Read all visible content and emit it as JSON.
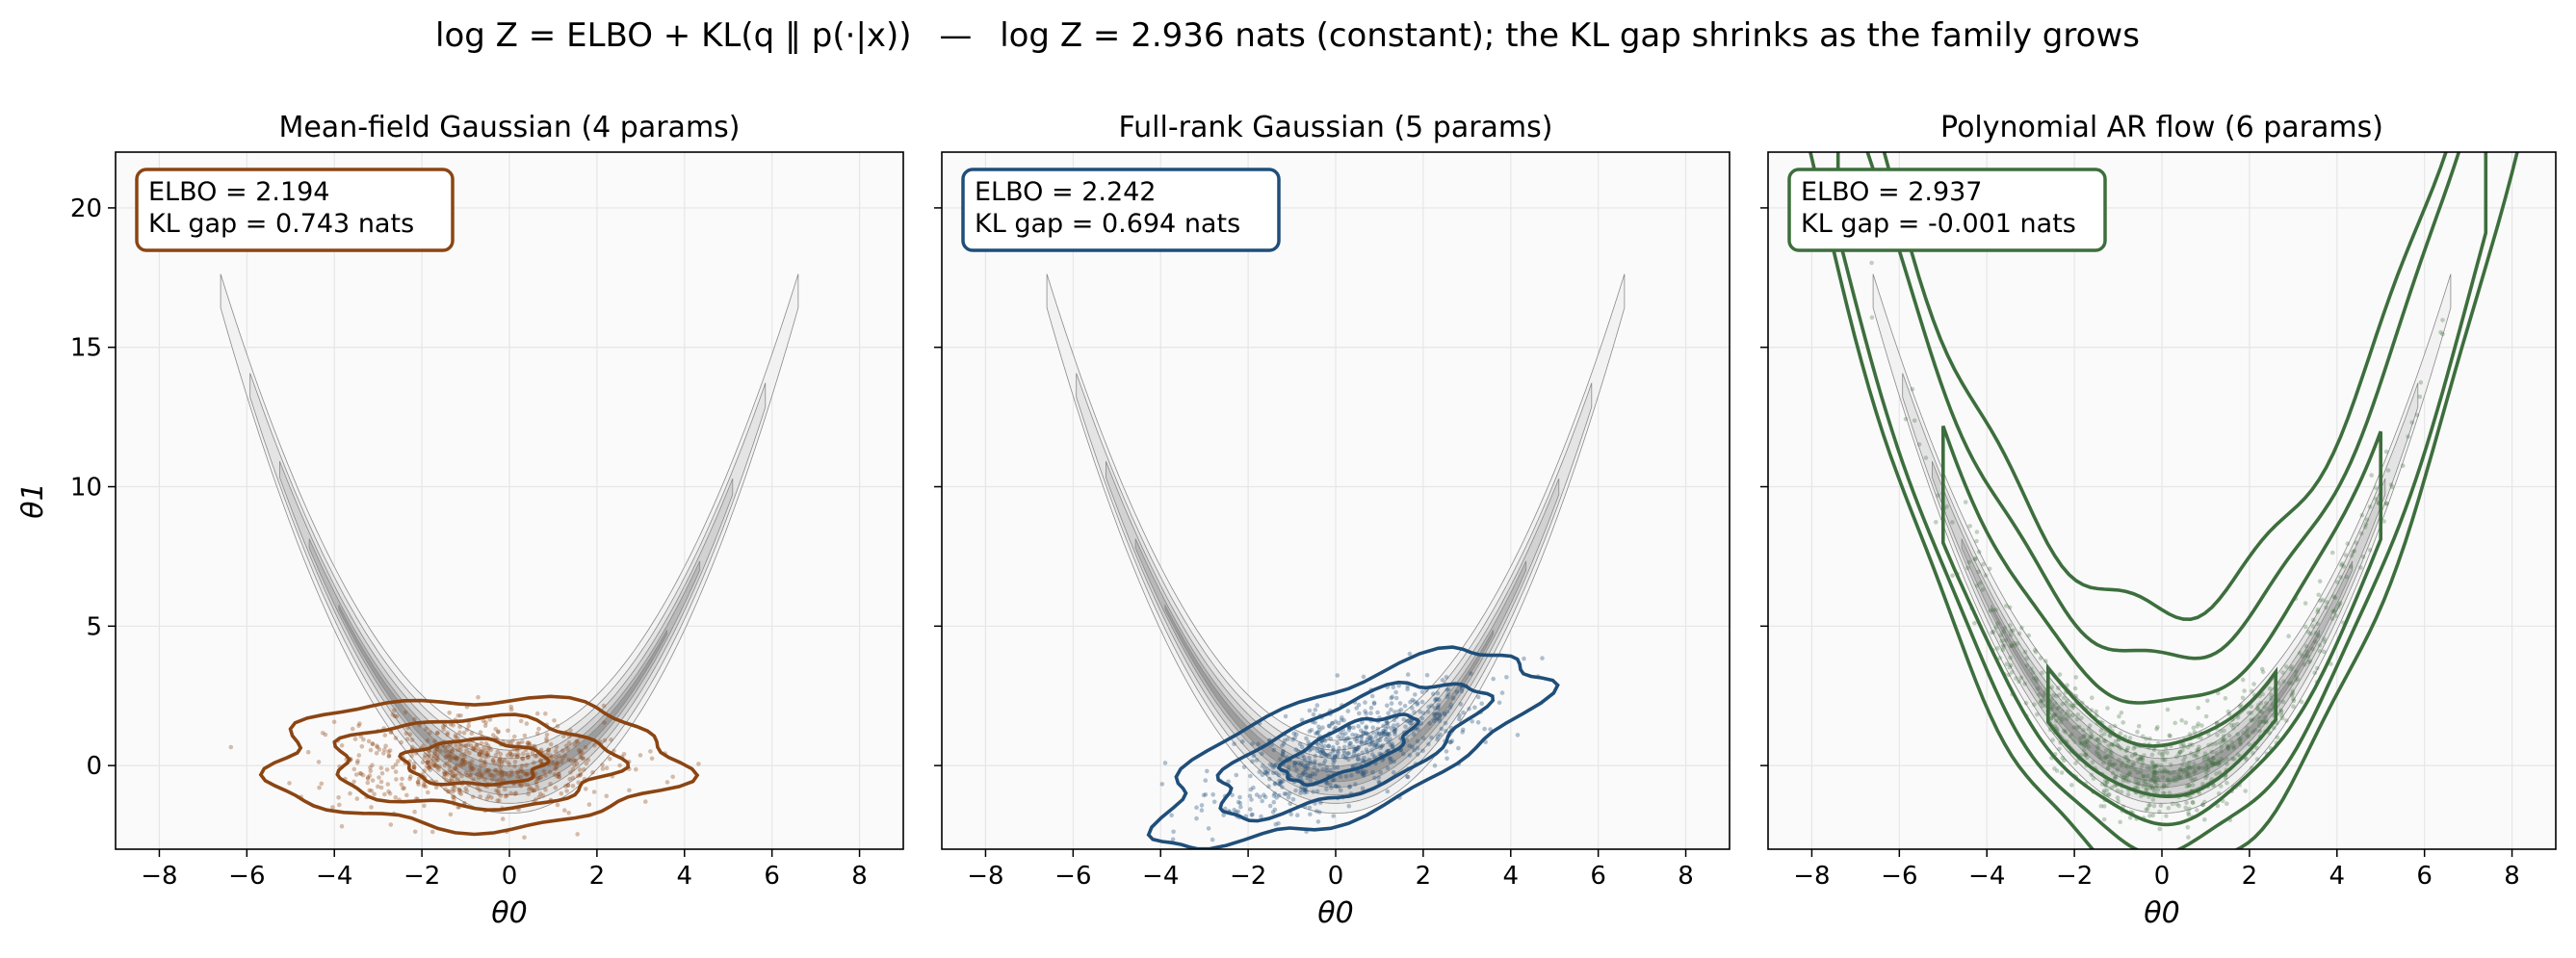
{
  "figure": {
    "title_parts": {
      "formula": "log Z = ELBO + KL(q ‖ p(·|x))",
      "separator": "—",
      "text": "log Z = 2.936 nats (constant); the KL gap shrinks as the family grows"
    }
  },
  "chart_data": [
    {
      "type": "scatter",
      "title": "Mean-field Gaussian (4 params)",
      "xlabel": "θ0",
      "ylabel": "θ1",
      "xlim": [
        -9,
        9
      ],
      "ylim": [
        -3,
        22
      ],
      "xticks": [
        -8,
        -6,
        -4,
        -2,
        0,
        2,
        4,
        6,
        8
      ],
      "yticks": [
        0,
        5,
        10,
        15,
        20
      ],
      "grid": true,
      "target_density": "banana (theta1 ≈ 0.4·theta0^2 − 0.4, grey filled contours)",
      "annotation_lines": [
        "ELBO = 2.194",
        "KL gap = 0.743 nats"
      ],
      "annotation_placement": "top-left",
      "elbo": 2.194,
      "kl_gap": 0.743,
      "color": "#8b4513",
      "approx": {
        "mean": [
          -0.8,
          0.1
        ],
        "sd": [
          1.6,
          0.8
        ],
        "corr": 0.0
      },
      "contour_levels_sd": [
        1.0,
        2.0,
        2.9
      ]
    },
    {
      "type": "scatter",
      "title": "Full-rank Gaussian (5 params)",
      "xlabel": "θ0",
      "xlim": [
        -9,
        9
      ],
      "ylim": [
        -3,
        22
      ],
      "xticks": [
        -8,
        -6,
        -4,
        -2,
        0,
        2,
        4,
        6,
        8
      ],
      "yticks": [
        0,
        5,
        10,
        15,
        20
      ],
      "grid": true,
      "annotation_lines": [
        "ELBO = 2.242",
        "KL gap = 0.694 nats"
      ],
      "annotation_placement": "top-left",
      "elbo": 2.242,
      "kl_gap": 0.694,
      "color": "#1f4e79",
      "approx": {
        "mean": [
          0.3,
          0.6
        ],
        "sd": [
          1.5,
          1.2
        ],
        "corr": 0.72
      },
      "contour_levels_sd": [
        1.0,
        2.0,
        2.9
      ]
    },
    {
      "type": "scatter",
      "title": "Polynomial AR flow (6 params)",
      "xlabel": "θ0",
      "xlim": [
        -9,
        9
      ],
      "ylim": [
        -3,
        22
      ],
      "xticks": [
        -8,
        -6,
        -4,
        -2,
        0,
        2,
        4,
        6,
        8
      ],
      "yticks": [
        0,
        5,
        10,
        15,
        20
      ],
      "grid": true,
      "annotation_lines": [
        "ELBO = 2.937",
        "KL gap = -0.001 nats"
      ],
      "annotation_placement": "top-left",
      "elbo": 2.937,
      "kl_gap": -0.001,
      "color": "#3d6e3d",
      "approx": {
        "banana_curvature": 0.4,
        "width": 0.9
      },
      "contour_levels_width": [
        0.7,
        1.6,
        2.6,
        3.7
      ]
    }
  ]
}
